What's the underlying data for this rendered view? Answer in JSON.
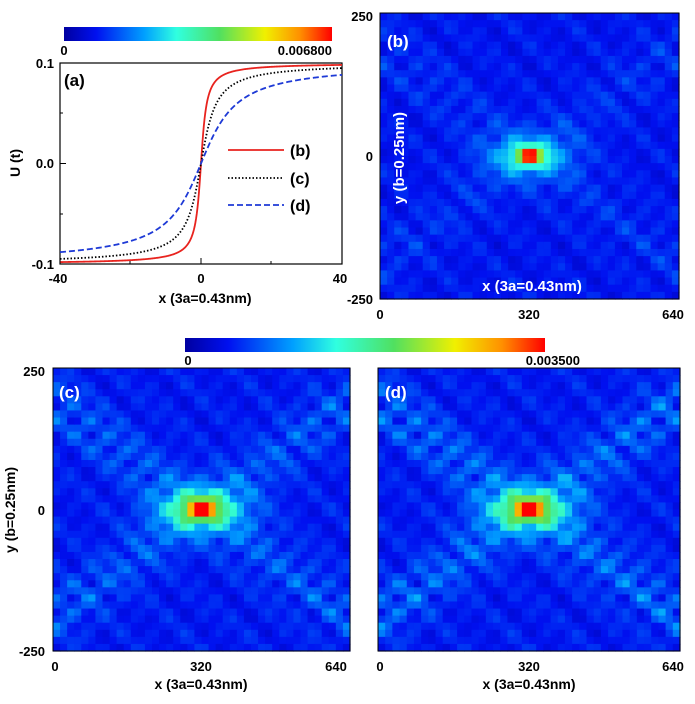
{
  "chart_data": [
    {
      "id": "a",
      "type": "line",
      "panel_label": "(a)",
      "xlabel": "x (3a=0.43nm)",
      "ylabel": "U (t)",
      "xlim": [
        -40,
        40
      ],
      "ylim": [
        -0.1,
        0.1
      ],
      "x_ticks": [
        "-40",
        "0",
        "40"
      ],
      "y_ticks": [
        "-0.1",
        "0.0",
        "0.1"
      ],
      "legend_position": "center-right",
      "series": [
        {
          "name": "(b)",
          "style": "solid",
          "color": "#e8231e",
          "amplitude": 0.1,
          "width": 1.2
        },
        {
          "name": "(c)",
          "style": "dotted",
          "color": "#000000",
          "amplitude": 0.1,
          "width": 3.2
        },
        {
          "name": "(d)",
          "style": "dashed",
          "color": "#1e3ad6",
          "amplitude": 0.1,
          "width": 7.5
        }
      ]
    },
    {
      "id": "b",
      "type": "heatmap",
      "panel_label": "(b)",
      "xlabel": "x (3a=0.43nm)",
      "ylabel": "y (b=0.25nm)",
      "xlim": [
        0,
        640
      ],
      "ylim": [
        -250,
        250
      ],
      "x_ticks": [
        "0",
        "320",
        "640"
      ],
      "y_ticks": [
        "250",
        "0",
        "-250"
      ],
      "colorbar": {
        "min": "0",
        "max": "0.006800"
      },
      "core_width": 1.2
    },
    {
      "id": "c",
      "type": "heatmap",
      "panel_label": "(c)",
      "xlabel": "x (3a=0.43nm)",
      "ylabel": "y (b=0.25nm)",
      "xlim": [
        0,
        640
      ],
      "ylim": [
        -250,
        250
      ],
      "x_ticks": [
        "0",
        "320",
        "640"
      ],
      "y_ticks": [
        "250",
        "0",
        "-250"
      ],
      "colorbar": {
        "min": "0",
        "max": "0.003500"
      },
      "core_width": 3.2
    },
    {
      "id": "d",
      "type": "heatmap",
      "panel_label": "(d)",
      "xlabel": "x (3a=0.43nm)",
      "xlim": [
        0,
        640
      ],
      "ylim": [
        -250,
        250
      ],
      "x_ticks": [
        "0",
        "320",
        "640"
      ],
      "colorbar": {
        "min": "0",
        "max": "0.003500"
      },
      "core_width": 7.5
    }
  ]
}
